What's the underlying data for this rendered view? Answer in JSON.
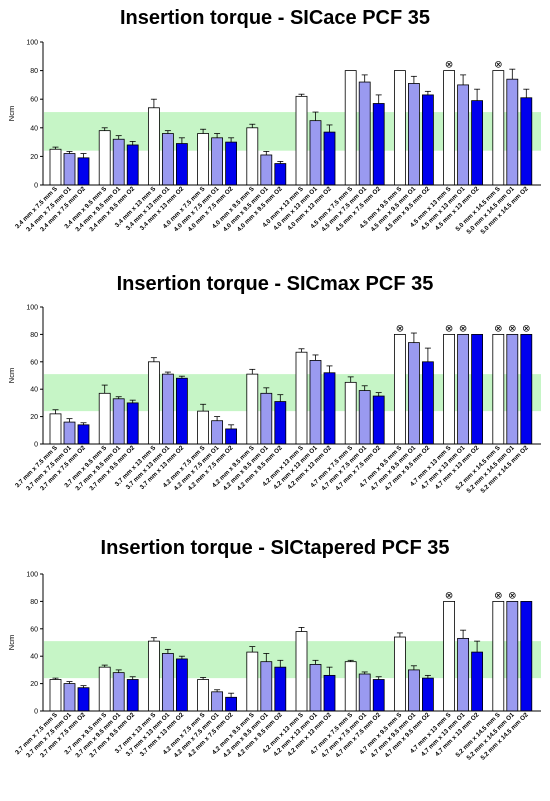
{
  "colors": {
    "S": "#ffffff",
    "O1": "#9a9af0",
    "O2": "#0000ee",
    "band": "#c6f5c6",
    "ceiling_marker": "#000000"
  },
  "ceiling_symbol": "⊗",
  "chart_data": [
    {
      "type": "bar",
      "title": "Insertion torque - SICace PCF 35",
      "ylabel": "Ncm",
      "ylim": [
        0,
        100
      ],
      "yticks": [
        0,
        20,
        40,
        60,
        80,
        100
      ],
      "reference_band": [
        24,
        51
      ],
      "groups": [
        {
          "labels": [
            "3.4 mm x 7.5 mm S",
            "3.4 mm x 7.5 mm O1",
            "3.4 mm x 7.5 mm O2"
          ],
          "values": [
            25,
            22,
            19
          ],
          "errors": [
            1.5,
            1.5,
            3
          ],
          "ceiling": [
            false,
            false,
            false
          ]
        },
        {
          "labels": [
            "3.4 mm x 9.5 mm S",
            "3.4 mm x 9.5 mm O1",
            "3.4 mm x 9.5 mm O2"
          ],
          "values": [
            38,
            32,
            28
          ],
          "errors": [
            2,
            2.5,
            2.5
          ],
          "ceiling": [
            false,
            false,
            false
          ]
        },
        {
          "labels": [
            "3.4 mm x 13 mm S",
            "3.4 mm x 13 mm O1",
            "3.4 mm x 13 mm O2"
          ],
          "values": [
            54,
            36,
            29
          ],
          "errors": [
            6,
            2,
            4
          ],
          "ceiling": [
            false,
            false,
            false
          ]
        },
        {
          "labels": [
            "4.0 mm x 7.5 mm S",
            "4.0 mm x 7.5 mm O1",
            "4.0 mm x 7.5 mm O2"
          ],
          "values": [
            36,
            33,
            30
          ],
          "errors": [
            3,
            3,
            3
          ],
          "ceiling": [
            false,
            false,
            false
          ]
        },
        {
          "labels": [
            "4.0 mm x 9.5 mm S",
            "4.0 mm x 9.5 mm O1",
            "4.0 mm x 9.5 mm O2"
          ],
          "values": [
            40,
            21,
            15
          ],
          "errors": [
            2.5,
            2.5,
            1.5
          ],
          "ceiling": [
            false,
            false,
            false
          ]
        },
        {
          "labels": [
            "4.0 mm x 13 mm S",
            "4.0 mm x 13 mm O1",
            "4.0 mm x 13 mm O2"
          ],
          "values": [
            62,
            45,
            37
          ],
          "errors": [
            1.5,
            6,
            5
          ],
          "ceiling": [
            false,
            false,
            false
          ]
        },
        {
          "labels": [
            "4.5 mm x 7.5 mm S",
            "4.5 mm x 7.5 mm O1",
            "4.5 mm x 7.5 mm O2"
          ],
          "values": [
            80,
            72,
            57
          ],
          "errors": [
            0,
            5,
            6
          ],
          "ceiling": [
            false,
            false,
            false
          ]
        },
        {
          "labels": [
            "4.5 mm x 9.5 mm S",
            "4.5 mm x 9.5 mm O1",
            "4.5 mm x 9.5 mm O2"
          ],
          "values": [
            80,
            71,
            63
          ],
          "errors": [
            0,
            5,
            2.5
          ],
          "ceiling": [
            false,
            false,
            false
          ]
        },
        {
          "labels": [
            "4.5 mm x 13 mm S",
            "4.5 mm x 13 mm O1",
            "4.5 mm x 13 mm O2"
          ],
          "values": [
            80,
            70,
            59
          ],
          "errors": [
            0,
            7,
            8
          ],
          "ceiling": [
            true,
            false,
            false
          ]
        },
        {
          "labels": [
            "5.0 mm x 14.5 mm S",
            "5.0 mm x 14.5 mm O1",
            "5.0 mm x 14.5 mm O2"
          ],
          "values": [
            80,
            74,
            61
          ],
          "errors": [
            0,
            7,
            6
          ],
          "ceiling": [
            true,
            false,
            false
          ]
        }
      ]
    },
    {
      "type": "bar",
      "title": "Insertion torque - SICmax PCF 35",
      "ylabel": "Ncm",
      "ylim": [
        0,
        100
      ],
      "yticks": [
        0,
        20,
        40,
        60,
        80,
        100
      ],
      "reference_band": [
        24,
        51
      ],
      "groups": [
        {
          "labels": [
            "3.7 mm x 7.5 mm S",
            "3.7 mm x 7.5 mm O1",
            "3.7 mm x 7.5 mm O2"
          ],
          "values": [
            22,
            16,
            14
          ],
          "errors": [
            3,
            2.5,
            1.5
          ],
          "ceiling": [
            false,
            false,
            false
          ]
        },
        {
          "labels": [
            "3.7 mm x 9.5 mm S",
            "3.7 mm x 9.5 mm O1",
            "3.7 mm x 9.5 mm O2"
          ],
          "values": [
            37,
            33,
            30
          ],
          "errors": [
            6,
            1.5,
            2
          ],
          "ceiling": [
            false,
            false,
            false
          ]
        },
        {
          "labels": [
            "3.7 mm x 13 mm S",
            "3.7 mm x 13 mm O1",
            "3.7 mm x 13 mm O2"
          ],
          "values": [
            60,
            51,
            48
          ],
          "errors": [
            3,
            1.5,
            1.5
          ],
          "ceiling": [
            false,
            false,
            false
          ]
        },
        {
          "labels": [
            "4.2 mm x 7.5 mm S",
            "4.2 mm x 7.5 mm O1",
            "4.2 mm x 7.5 mm O2"
          ],
          "values": [
            24,
            17,
            11
          ],
          "errors": [
            5,
            3,
            3
          ],
          "ceiling": [
            false,
            false,
            false
          ]
        },
        {
          "labels": [
            "4.2 mm x 9.5 mm S",
            "4.2 mm x 9.5 mm O1",
            "4.2 mm x 9.5 mm O2"
          ],
          "values": [
            51,
            37,
            31
          ],
          "errors": [
            3.5,
            4,
            5
          ],
          "ceiling": [
            false,
            false,
            false
          ]
        },
        {
          "labels": [
            "4.2 mm x 13 mm S",
            "4.2 mm x 13 mm O1",
            "4.2 mm x 13 mm O2"
          ],
          "values": [
            67,
            61,
            52
          ],
          "errors": [
            2.5,
            4,
            5
          ],
          "ceiling": [
            false,
            false,
            false
          ]
        },
        {
          "labels": [
            "4.7 mm x 7.5 mm S",
            "4.7 mm x 7.5 mm O1",
            "4.7 mm x 7.5 mm O2"
          ],
          "values": [
            45,
            39,
            35
          ],
          "errors": [
            4,
            3.5,
            2.5
          ],
          "ceiling": [
            false,
            false,
            false
          ]
        },
        {
          "labels": [
            "4.7 mm x 9.5 mm S",
            "4.7 mm x 9.5 mm O1",
            "4.7 mm x 9.5 mm O2"
          ],
          "values": [
            80,
            74,
            60
          ],
          "errors": [
            0,
            7,
            10
          ],
          "ceiling": [
            true,
            false,
            false
          ]
        },
        {
          "labels": [
            "4.7 mm x 13 mm S",
            "4.7 mm x 13 mm O1",
            "4.7 mm x 13 mm O2"
          ],
          "values": [
            80,
            80,
            80
          ],
          "errors": [
            0,
            0,
            0
          ],
          "ceiling": [
            true,
            true,
            false
          ]
        },
        {
          "labels": [
            "5.2 mm x 14.5 mm S",
            "5.2 mm x 14.5 mm O1",
            "5.2 mm x 14.5 mm O2"
          ],
          "values": [
            80,
            80,
            80
          ],
          "errors": [
            0,
            0,
            0
          ],
          "ceiling": [
            true,
            true,
            true
          ]
        }
      ]
    },
    {
      "type": "bar",
      "title": "Insertion torque - SICtapered PCF 35",
      "ylabel": "Ncm",
      "ylim": [
        0,
        100
      ],
      "yticks": [
        0,
        20,
        40,
        60,
        80,
        100
      ],
      "reference_band": [
        24,
        51
      ],
      "groups": [
        {
          "labels": [
            "3.7 mm x 7.5 mm S",
            "3.7 mm x 7.5 mm O1",
            "3.7 mm x 7.5 mm O2"
          ],
          "values": [
            23,
            20,
            17
          ],
          "errors": [
            1,
            1.5,
            1.5
          ],
          "ceiling": [
            false,
            false,
            false
          ]
        },
        {
          "labels": [
            "3.7 mm x 9.5 mm S",
            "3.7 mm x 9.5 mm O1",
            "3.7 mm x 9.5 mm O2"
          ],
          "values": [
            32,
            28,
            23
          ],
          "errors": [
            1.5,
            2,
            2
          ],
          "ceiling": [
            false,
            false,
            false
          ]
        },
        {
          "labels": [
            "3.7 mm x 13 mm S",
            "3.7 mm x 13 mm O1",
            "3.7 mm x 13 mm O2"
          ],
          "values": [
            51,
            42,
            38
          ],
          "errors": [
            2.5,
            3,
            2
          ],
          "ceiling": [
            false,
            false,
            false
          ]
        },
        {
          "labels": [
            "4.2 mm x 7.5 mm S",
            "4.2 mm x 7.5 mm O1",
            "4.2 mm x 7.5 mm O2"
          ],
          "values": [
            23,
            14,
            10
          ],
          "errors": [
            1.5,
            1.5,
            3
          ],
          "ceiling": [
            false,
            false,
            false
          ]
        },
        {
          "labels": [
            "4.2 mm x 9.5 mm S",
            "4.2 mm x 9.5 mm O1",
            "4.2 mm x 9.5 mm O2"
          ],
          "values": [
            43,
            36,
            32
          ],
          "errors": [
            4,
            6,
            5
          ],
          "ceiling": [
            false,
            false,
            false
          ]
        },
        {
          "labels": [
            "4.2 mm x 13 mm S",
            "4.2 mm x 13 mm O1",
            "4.2 mm x 13 mm O2"
          ],
          "values": [
            58,
            34,
            26
          ],
          "errors": [
            3,
            3,
            6
          ],
          "ceiling": [
            false,
            false,
            false
          ]
        },
        {
          "labels": [
            "4.7 mm x 7.5 mm S",
            "4.7 mm x 7.5 mm O1",
            "4.7 mm x 7.5 mm O2"
          ],
          "values": [
            36,
            27,
            23
          ],
          "errors": [
            1,
            1.5,
            2
          ],
          "ceiling": [
            false,
            false,
            false
          ]
        },
        {
          "labels": [
            "4.7 mm x 9.5 mm S",
            "4.7 mm x 9.5 mm O1",
            "4.7 mm x 9.5 mm O2"
          ],
          "values": [
            54,
            30,
            24
          ],
          "errors": [
            3,
            3,
            2
          ],
          "ceiling": [
            false,
            false,
            false
          ]
        },
        {
          "labels": [
            "4.7 mm x 13 mm S",
            "4.7 mm x 13 mm O1",
            "4.7 mm x 13 mm O2"
          ],
          "values": [
            80,
            53,
            43
          ],
          "errors": [
            0,
            6,
            8
          ],
          "ceiling": [
            true,
            false,
            false
          ]
        },
        {
          "labels": [
            "5.2 mm x 14.5 mm S",
            "5.2 mm x 14.5 mm O1",
            "5.2 mm x 14.5 mm O2"
          ],
          "values": [
            80,
            80,
            80
          ],
          "errors": [
            0,
            0,
            0
          ],
          "ceiling": [
            true,
            true,
            false
          ]
        }
      ]
    }
  ]
}
